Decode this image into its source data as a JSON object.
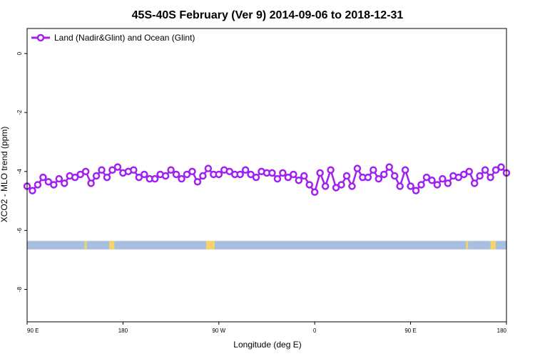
{
  "chart_data": {
    "type": "line",
    "title": "45S-40S February (Ver 9)   2014-09-06 to 2018-12-31",
    "xlabel": "Longitude (deg E)",
    "ylabel": "XCO2 - MLO trend (ppm)",
    "xlim": [
      90,
      540
    ],
    "ylim": [
      -9.1,
      0.85
    ],
    "x_ticks": [
      {
        "value": 90,
        "label": "90 E"
      },
      {
        "value": 180,
        "label": "180"
      },
      {
        "value": 270,
        "label": "90 W"
      },
      {
        "value": 360,
        "label": "0"
      },
      {
        "value": 450,
        "label": "90 E"
      },
      {
        "value": 540,
        "label": "180"
      }
    ],
    "y_ticks": [
      {
        "value": 0,
        "label": "0"
      },
      {
        "value": -2,
        "label": "-2"
      },
      {
        "value": -4,
        "label": "-4"
      },
      {
        "value": -6,
        "label": "-6"
      },
      {
        "value": -8,
        "label": "-8"
      }
    ],
    "grid": false,
    "legend_position": "top-left",
    "series": [
      {
        "name": "Land (Nadir&Glint) and Ocean (Glint)",
        "color": "#a020f0",
        "x": [
          90,
          95,
          100,
          105,
          110,
          115,
          120,
          125,
          130,
          135,
          140,
          145,
          150,
          155,
          160,
          165,
          170,
          175,
          180,
          185,
          190,
          195,
          200,
          205,
          210,
          215,
          220,
          225,
          230,
          235,
          240,
          245,
          250,
          255,
          260,
          265,
          270,
          275,
          280,
          285,
          290,
          295,
          300,
          305,
          310,
          315,
          320,
          325,
          330,
          335,
          340,
          345,
          350,
          355,
          360,
          365,
          370,
          375,
          380,
          385,
          390,
          395,
          400,
          405,
          410,
          415,
          420,
          425,
          430,
          435,
          440,
          445,
          450,
          455,
          460,
          465,
          470,
          475,
          480,
          485,
          490,
          495,
          500,
          505,
          510,
          515,
          520,
          525,
          530,
          535,
          540
        ],
        "y": [
          -4.5,
          -4.65,
          -4.45,
          -4.2,
          -4.35,
          -4.45,
          -4.25,
          -4.4,
          -4.15,
          -4.2,
          -4.1,
          -4.0,
          -4.4,
          -4.15,
          -3.95,
          -4.2,
          -3.95,
          -3.85,
          -4.05,
          -4.0,
          -3.95,
          -4.2,
          -4.1,
          -4.25,
          -4.25,
          -4.1,
          -4.15,
          -3.95,
          -4.1,
          -4.25,
          -4.1,
          -4.0,
          -4.35,
          -4.15,
          -3.9,
          -4.1,
          -4.1,
          -3.95,
          -4.0,
          -4.1,
          -4.1,
          -3.95,
          -4.1,
          -4.2,
          -4.0,
          -4.05,
          -4.05,
          -4.25,
          -4.05,
          -4.2,
          -4.1,
          -4.3,
          -4.15,
          -4.45,
          -4.7,
          -4.05,
          -4.5,
          -3.95,
          -4.55,
          -4.45,
          -4.15,
          -4.5,
          -3.9,
          -4.2,
          -4.2,
          -3.95,
          -4.25,
          -4.1,
          -3.85,
          -4.15,
          -4.5,
          -3.95,
          -4.5,
          -4.65,
          -4.45,
          -4.2,
          -4.3,
          -4.45,
          -4.25,
          -4.4,
          -4.15,
          -4.2,
          -4.1,
          -4.0,
          -4.4,
          -4.15,
          -3.95,
          -4.2,
          -3.95,
          -3.85,
          -4.05
        ]
      }
    ],
    "land_ocean_strip": {
      "y": -6.5,
      "ocean_color": "#a8bfe0",
      "land_color": "#f5d36a",
      "land_segments": [
        [
          144,
          146
        ],
        [
          167,
          172
        ],
        [
          258,
          266
        ],
        [
          502,
          504
        ],
        [
          525,
          530
        ]
      ]
    }
  }
}
